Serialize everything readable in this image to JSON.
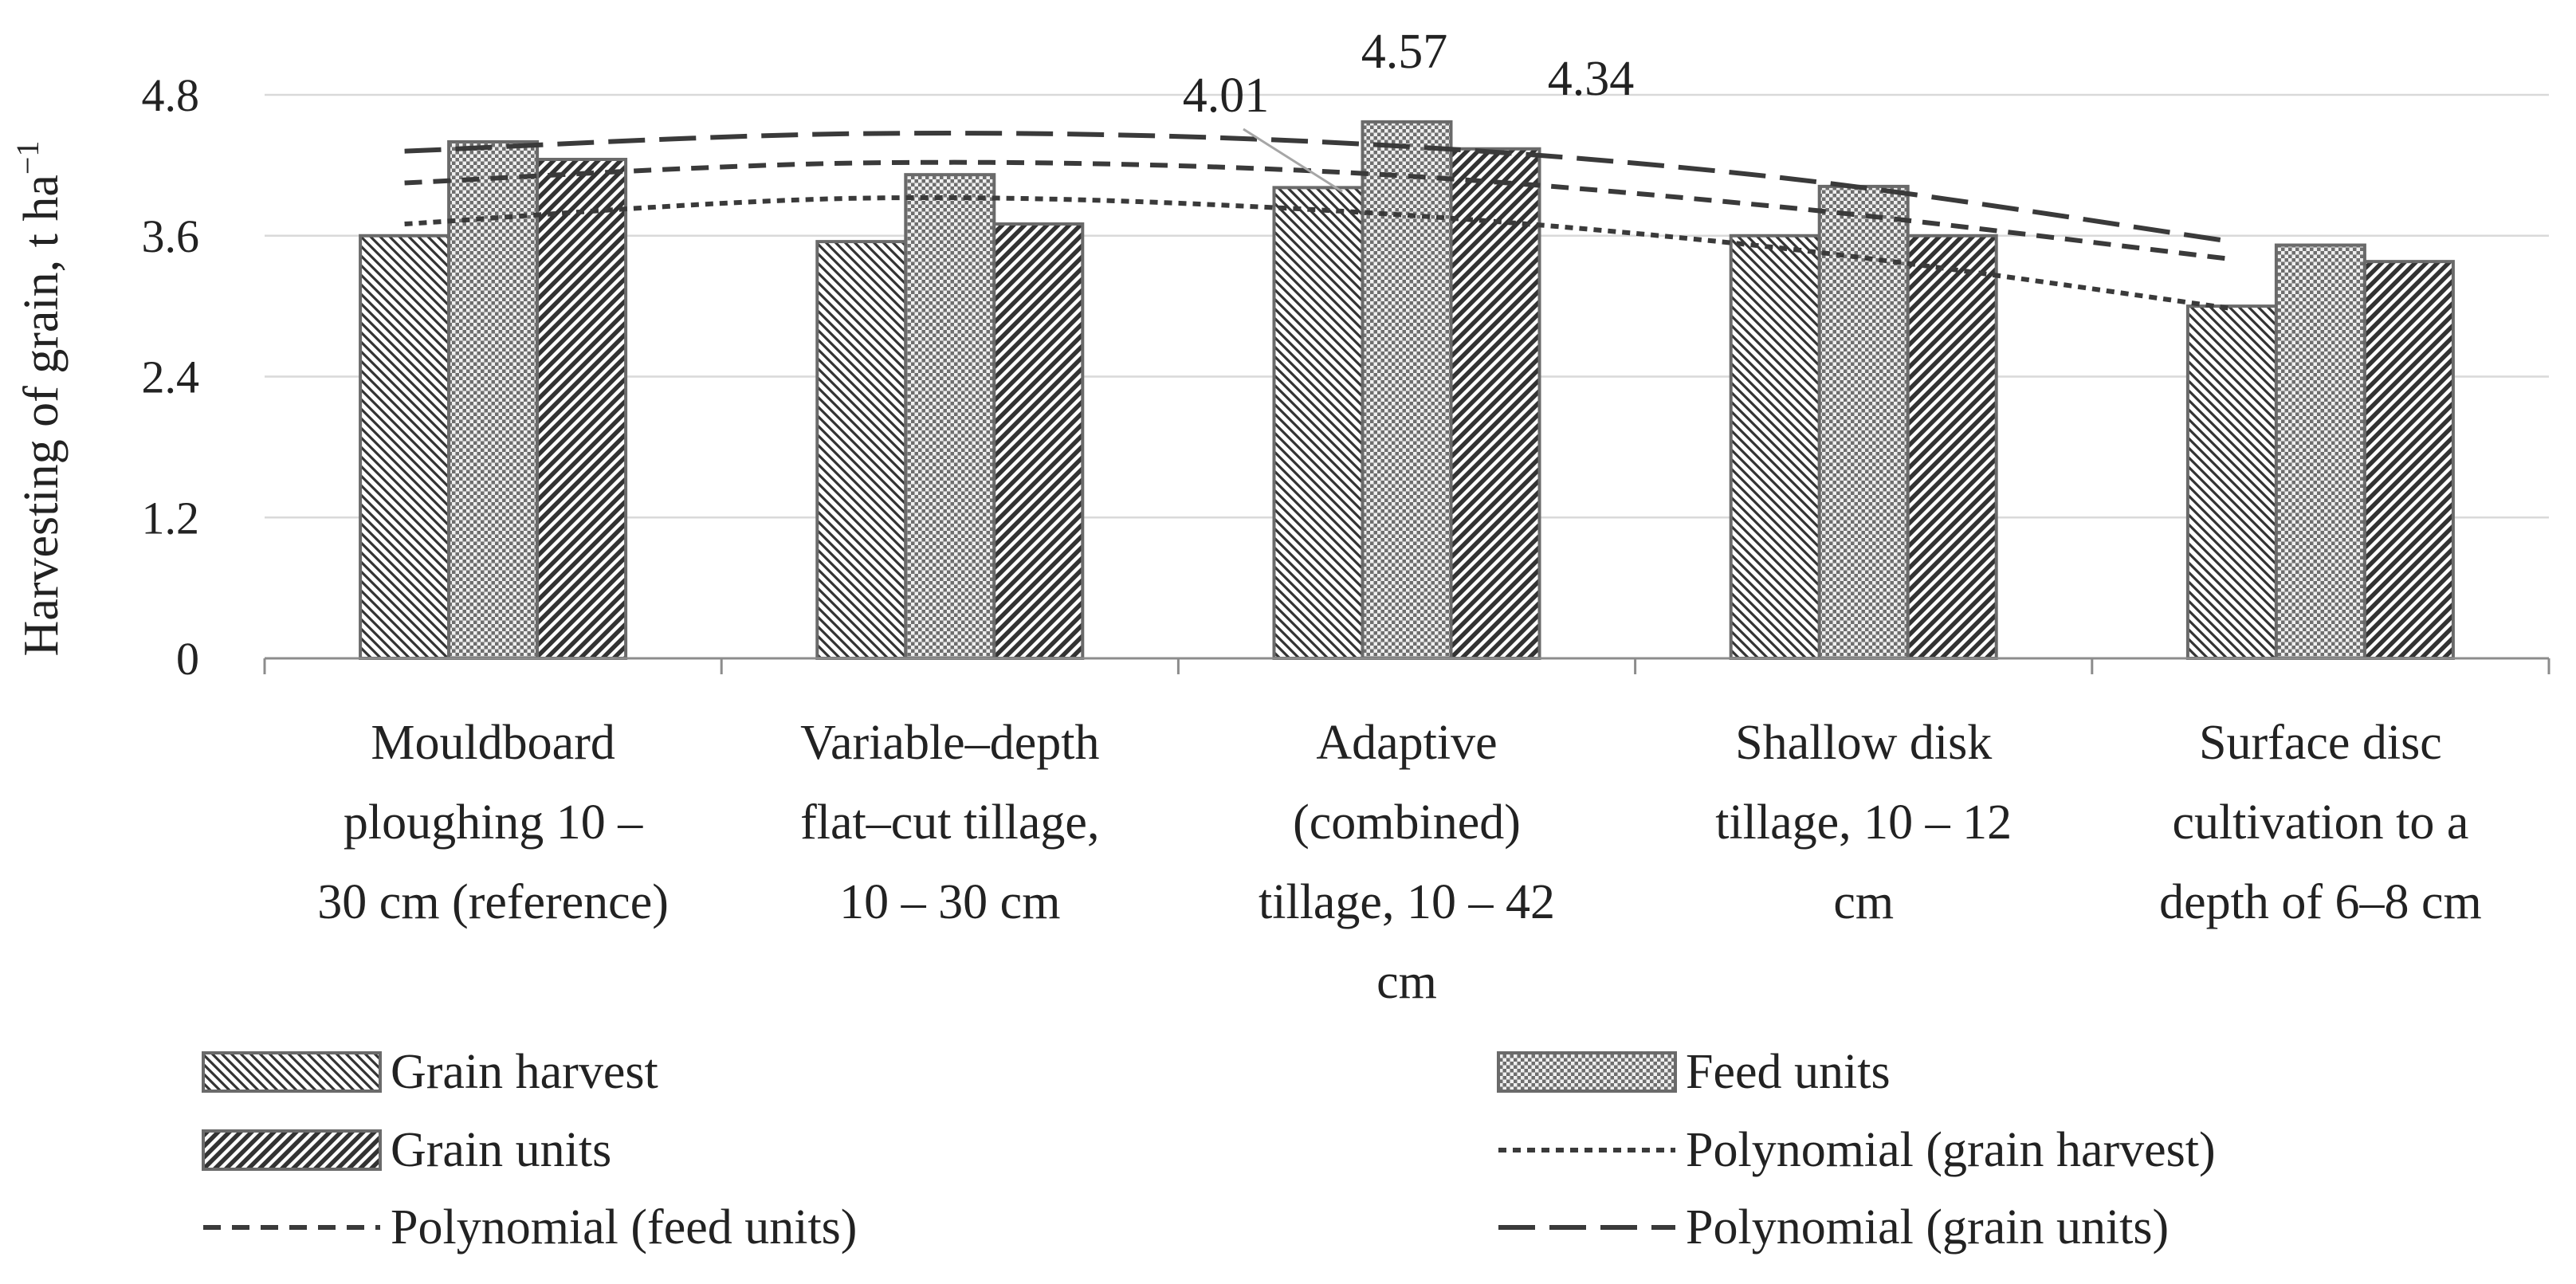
{
  "chart_data": {
    "type": "bar",
    "title": "",
    "ylabel": "Harvesting of grain, t ha",
    "ylabel_superscript": "−1",
    "xlabel": "",
    "ylim": [
      0,
      4.8
    ],
    "yticks": [
      0,
      1.2,
      2.4,
      3.6,
      4.8
    ],
    "ytick_labels": [
      "0",
      "1.2",
      "2.4",
      "3.6",
      "4.8"
    ],
    "grid": true,
    "legend_position": "bottom",
    "categories": [
      [
        "Mouldboard",
        "ploughing 10 –",
        "30 cm (reference)"
      ],
      [
        "Variable–depth",
        "flat–cut tillage,",
        "10 – 30 cm"
      ],
      [
        "Adaptive",
        "(combined)",
        "tillage, 10 – 42",
        "cm"
      ],
      [
        "Shallow disk",
        "tillage, 10 – 12",
        "cm"
      ],
      [
        "Surface disc",
        "cultivation to a",
        "depth of 6–8 cm"
      ]
    ],
    "series": [
      {
        "name": "Grain harvest",
        "pattern": "diag-down",
        "values": [
          3.6,
          3.55,
          4.01,
          3.6,
          3.0
        ]
      },
      {
        "name": "Feed units",
        "pattern": "checker",
        "values": [
          4.4,
          4.12,
          4.57,
          4.02,
          3.52
        ]
      },
      {
        "name": "Grain units",
        "pattern": "diag-up",
        "values": [
          4.25,
          3.7,
          4.34,
          3.6,
          3.38
        ]
      }
    ],
    "data_labels": [
      {
        "series": 0,
        "category": 2,
        "text": "4.01"
      },
      {
        "series": 1,
        "category": 2,
        "text": "4.57"
      },
      {
        "series": 2,
        "category": 2,
        "text": "4.34"
      }
    ],
    "trendlines": [
      {
        "name": "Polynomial (grain harvest)",
        "style": "short-dash",
        "values": [
          3.7,
          3.92,
          3.82,
          3.5,
          2.98
        ]
      },
      {
        "name": "Polynomial (feed units)",
        "style": "dash",
        "values": [
          4.05,
          4.22,
          4.15,
          3.85,
          3.4
        ]
      },
      {
        "name": "Polynomial (grain units)",
        "style": "long-dash",
        "values": [
          4.32,
          4.47,
          4.4,
          4.1,
          3.55
        ]
      }
    ],
    "legend": [
      "Grain harvest",
      "Feed units",
      "Grain units",
      "Polynomial (grain harvest)",
      "Polynomial (feed units)",
      "Polynomial (grain units)"
    ]
  }
}
